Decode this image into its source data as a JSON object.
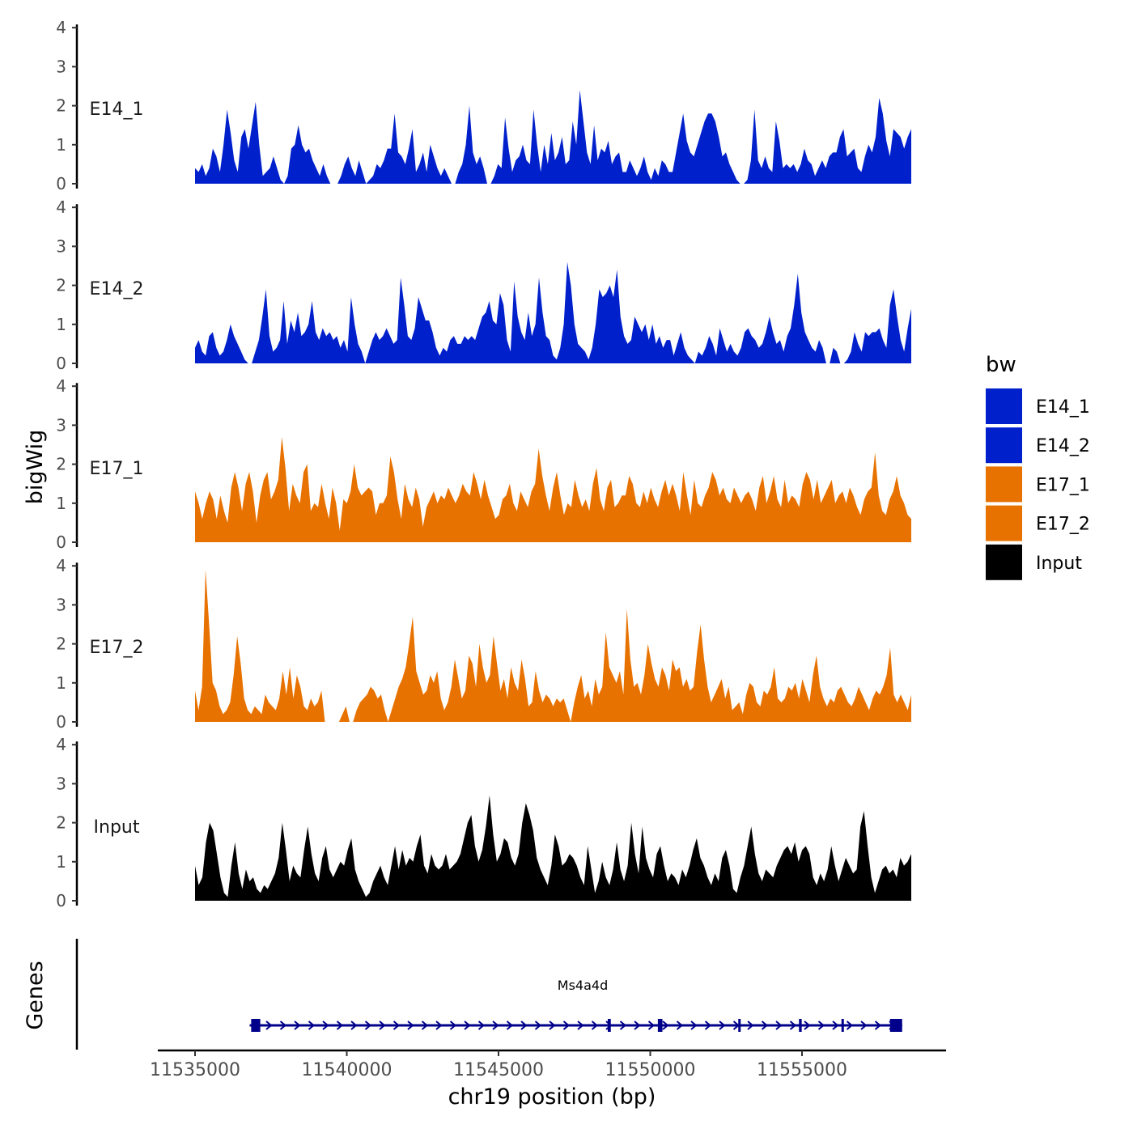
{
  "chart_data": {
    "type": "area",
    "y_axis_title": "bigWig",
    "x_axis_title": "chr19 position (bp)",
    "genes_label": "Genes",
    "y_ticks": [
      0,
      1,
      2,
      3,
      4
    ],
    "ylim": [
      0,
      4
    ],
    "x_ticks": [
      11535000,
      11540000,
      11545000,
      11550000,
      11555000
    ],
    "xlim": [
      11534000,
      11559500
    ],
    "legend": {
      "title": "bw",
      "position": "right",
      "entries": [
        {
          "label": "E14_1",
          "color": "#0020CC"
        },
        {
          "label": "E14_2",
          "color": "#0020CC"
        },
        {
          "label": "E17_1",
          "color": "#E87200"
        },
        {
          "label": "E17_2",
          "color": "#E87200"
        },
        {
          "label": "Input",
          "color": "#000000"
        }
      ]
    },
    "series": [
      {
        "name": "E14_1",
        "color": "#0020CC",
        "x_start": 11535000,
        "x_end": 11558600,
        "values": [
          0.4,
          0.3,
          0.5,
          0.2,
          0.4,
          0.9,
          0.7,
          0.3,
          1.0,
          1.9,
          1.3,
          0.6,
          0.3,
          1.2,
          1.4,
          0.9,
          1.5,
          2.1,
          1.0,
          0.2,
          0.3,
          0.4,
          0.7,
          0.4,
          0.1,
          0.0,
          0.2,
          0.9,
          1.0,
          1.5,
          1.0,
          0.8,
          0.9,
          0.6,
          0.4,
          0.2,
          0.5,
          0.2,
          0.0,
          0.0,
          0.0,
          0.2,
          0.5,
          0.7,
          0.4,
          0.2,
          0.6,
          0.3,
          0.0,
          0.1,
          0.2,
          0.5,
          0.4,
          0.6,
          0.9,
          0.9,
          1.8,
          0.8,
          0.7,
          0.5,
          0.9,
          1.4,
          0.3,
          0.5,
          0.8,
          0.3,
          1.0,
          0.7,
          0.4,
          0.2,
          0.4,
          0.2,
          0.0,
          0.0,
          0.3,
          0.5,
          1.0,
          2.0,
          0.8,
          0.5,
          0.7,
          0.4,
          0.0,
          0.0,
          0.2,
          0.5,
          0.4,
          1.7,
          0.9,
          0.3,
          0.6,
          0.7,
          1.0,
          0.6,
          0.5,
          1.9,
          1.0,
          0.3,
          1.0,
          0.5,
          1.3,
          0.6,
          0.8,
          1.2,
          0.5,
          0.6,
          1.6,
          1.0,
          2.4,
          1.6,
          0.8,
          0.5,
          1.5,
          0.6,
          0.9,
          0.8,
          1.1,
          0.5,
          0.7,
          0.8,
          0.3,
          0.3,
          0.6,
          0.4,
          0.2,
          0.4,
          0.7,
          0.3,
          0.1,
          0.4,
          0.2,
          0.6,
          0.5,
          0.3,
          0.3,
          0.8,
          1.3,
          1.8,
          1.1,
          0.8,
          0.7,
          1.0,
          1.3,
          1.6,
          1.8,
          1.8,
          1.6,
          1.2,
          0.7,
          0.8,
          0.5,
          0.3,
          0.1,
          0.0,
          0.0,
          0.1,
          0.6,
          1.9,
          0.6,
          0.4,
          0.7,
          0.4,
          0.3,
          1.6,
          1.1,
          0.4,
          0.5,
          0.4,
          0.5,
          0.3,
          0.5,
          0.9,
          0.6,
          0.5,
          0.2,
          0.4,
          0.6,
          0.4,
          0.7,
          0.8,
          0.8,
          1.2,
          1.4,
          0.7,
          0.8,
          0.9,
          0.4,
          0.3,
          0.7,
          1.0,
          0.8,
          1.2,
          2.2,
          1.8,
          1.1,
          0.7,
          1.4,
          1.3,
          1.2,
          0.9,
          1.2,
          1.4
        ]
      },
      {
        "name": "E14_2",
        "color": "#0020CC",
        "x_start": 11535000,
        "x_end": 11558600,
        "values": [
          0.4,
          0.6,
          0.3,
          0.2,
          0.7,
          0.8,
          0.4,
          0.2,
          0.3,
          0.6,
          1.0,
          0.7,
          0.5,
          0.3,
          0.1,
          0.0,
          0.0,
          0.3,
          0.6,
          1.2,
          1.9,
          0.7,
          0.3,
          0.4,
          0.6,
          1.6,
          0.5,
          1.1,
          0.8,
          1.3,
          0.7,
          0.8,
          1.0,
          1.6,
          0.8,
          0.6,
          0.9,
          0.7,
          0.8,
          0.6,
          0.7,
          0.4,
          0.6,
          0.3,
          1.7,
          1.0,
          0.5,
          0.3,
          0.0,
          0.3,
          0.6,
          0.8,
          0.6,
          0.7,
          0.9,
          0.7,
          0.5,
          0.6,
          2.2,
          1.5,
          0.7,
          0.6,
          0.9,
          1.7,
          1.4,
          1.1,
          1.1,
          0.8,
          0.4,
          0.2,
          0.4,
          0.3,
          0.6,
          0.7,
          0.5,
          0.5,
          0.7,
          0.6,
          0.7,
          0.6,
          0.9,
          1.2,
          1.3,
          1.6,
          1.1,
          1.0,
          1.8,
          1.5,
          0.6,
          0.3,
          2.1,
          1.2,
          0.8,
          0.6,
          1.3,
          0.7,
          1.0,
          2.2,
          1.3,
          0.7,
          0.6,
          0.2,
          0.1,
          0.4,
          1.0,
          2.6,
          2.0,
          1.0,
          0.5,
          0.4,
          0.3,
          0.1,
          0.4,
          1.0,
          1.9,
          1.7,
          1.8,
          2.0,
          1.7,
          2.4,
          1.2,
          0.7,
          0.5,
          0.6,
          1.2,
          1.0,
          0.8,
          1.0,
          0.6,
          1.0,
          0.5,
          0.7,
          0.4,
          0.6,
          0.6,
          0.2,
          0.5,
          0.8,
          0.4,
          0.2,
          0.1,
          0.0,
          0.3,
          0.2,
          0.4,
          0.7,
          0.5,
          0.2,
          0.9,
          0.6,
          0.3,
          0.5,
          0.3,
          0.2,
          0.4,
          0.8,
          0.9,
          0.7,
          0.6,
          0.4,
          0.5,
          0.8,
          1.2,
          0.8,
          0.5,
          0.6,
          0.3,
          0.7,
          0.9,
          1.5,
          2.3,
          1.3,
          0.8,
          0.6,
          0.4,
          0.3,
          0.6,
          0.4,
          0.0,
          0.0,
          0.4,
          0.3,
          0.0,
          0.0,
          0.1,
          0.3,
          0.8,
          0.5,
          0.3,
          0.8,
          0.7,
          0.8,
          0.8,
          0.9,
          0.6,
          0.4,
          1.5,
          1.9,
          1.2,
          0.6,
          0.3,
          0.9,
          1.4
        ]
      },
      {
        "name": "E17_1",
        "color": "#E87200",
        "x_start": 11535000,
        "x_end": 11558600,
        "values": [
          1.3,
          1.0,
          0.6,
          1.0,
          1.3,
          1.1,
          0.6,
          1.2,
          0.8,
          0.5,
          1.4,
          1.8,
          1.4,
          0.8,
          1.5,
          1.8,
          1.3,
          0.5,
          1.2,
          1.6,
          1.8,
          1.1,
          1.3,
          1.6,
          2.7,
          1.9,
          0.8,
          1.5,
          1.2,
          1.0,
          1.8,
          2.0,
          0.8,
          1.0,
          0.9,
          1.5,
          1.0,
          0.6,
          1.4,
          1.0,
          0.3,
          1.1,
          1.0,
          1.3,
          2.0,
          1.4,
          1.2,
          1.3,
          1.4,
          1.3,
          0.7,
          1.0,
          1.0,
          1.2,
          2.2,
          1.8,
          1.1,
          0.6,
          1.5,
          1.1,
          0.9,
          1.4,
          1.1,
          0.4,
          0.9,
          1.1,
          1.3,
          1.0,
          1.2,
          1.1,
          1.4,
          1.2,
          1.0,
          1.2,
          1.5,
          1.3,
          1.2,
          1.8,
          1.5,
          1.1,
          1.6,
          1.2,
          0.9,
          0.6,
          0.7,
          1.1,
          1.2,
          1.5,
          1.0,
          0.8,
          1.3,
          1.1,
          0.9,
          1.3,
          1.5,
          2.4,
          1.7,
          1.2,
          0.8,
          1.4,
          1.8,
          1.2,
          0.7,
          1.0,
          0.9,
          1.6,
          1.2,
          0.9,
          1.1,
          0.8,
          1.5,
          1.9,
          1.1,
          0.8,
          1.4,
          1.6,
          0.9,
          1.0,
          1.2,
          1.2,
          1.7,
          1.5,
          1.0,
          0.9,
          1.3,
          1.0,
          1.4,
          1.1,
          0.9,
          1.3,
          1.6,
          1.2,
          1.5,
          1.2,
          0.8,
          1.8,
          1.2,
          0.7,
          1.6,
          1.0,
          0.9,
          1.2,
          1.4,
          1.8,
          1.6,
          1.2,
          1.4,
          1.1,
          1.0,
          1.4,
          1.2,
          1.0,
          1.2,
          1.3,
          1.1,
          0.8,
          1.4,
          1.7,
          1.0,
          1.3,
          1.7,
          1.1,
          0.9,
          1.6,
          1.0,
          1.2,
          1.1,
          0.9,
          1.5,
          1.8,
          1.6,
          1.1,
          1.6,
          1.0,
          1.2,
          1.4,
          1.6,
          1.0,
          1.2,
          1.3,
          1.0,
          1.4,
          1.2,
          0.9,
          0.7,
          1.1,
          1.3,
          1.4,
          2.3,
          1.2,
          0.8,
          0.7,
          1.1,
          1.3,
          1.7,
          1.2,
          1.0,
          0.7,
          0.6
        ]
      },
      {
        "name": "E17_2",
        "color": "#E87200",
        "x_start": 11535000,
        "x_end": 11558600,
        "values": [
          0.8,
          0.3,
          0.9,
          3.9,
          2.5,
          1.0,
          0.8,
          0.4,
          0.2,
          0.3,
          0.5,
          1.2,
          2.2,
          1.5,
          0.6,
          0.3,
          0.2,
          0.4,
          0.3,
          0.2,
          0.7,
          0.5,
          0.4,
          0.3,
          0.6,
          1.3,
          0.7,
          1.4,
          0.6,
          1.2,
          0.9,
          0.4,
          0.3,
          0.6,
          0.4,
          0.5,
          0.8,
          0.0,
          0.0,
          0.0,
          0.0,
          0.0,
          0.2,
          0.4,
          0.0,
          0.0,
          0.3,
          0.5,
          0.6,
          0.7,
          0.9,
          0.8,
          0.6,
          0.7,
          0.3,
          0.0,
          0.3,
          0.6,
          0.9,
          1.1,
          1.4,
          2.0,
          2.7,
          1.3,
          1.0,
          0.7,
          0.8,
          1.2,
          1.0,
          1.3,
          0.6,
          0.3,
          0.5,
          0.9,
          1.6,
          1.1,
          0.6,
          0.8,
          1.7,
          1.5,
          0.9,
          2.0,
          1.4,
          1.0,
          1.2,
          2.2,
          1.5,
          0.8,
          1.1,
          0.6,
          1.4,
          1.0,
          0.8,
          1.6,
          1.1,
          0.4,
          0.5,
          1.3,
          0.8,
          0.5,
          0.7,
          0.6,
          0.4,
          0.6,
          0.5,
          0.6,
          0.3,
          0.0,
          0.5,
          0.9,
          1.2,
          0.6,
          0.8,
          0.4,
          1.1,
          0.7,
          0.9,
          2.3,
          1.4,
          1.2,
          1.0,
          1.3,
          0.7,
          2.9,
          1.6,
          0.9,
          1.0,
          0.7,
          1.2,
          2.0,
          1.5,
          1.1,
          0.9,
          1.4,
          1.2,
          0.8,
          1.6,
          1.3,
          1.4,
          0.9,
          1.1,
          0.8,
          0.9,
          1.8,
          2.5,
          1.6,
          0.9,
          0.5,
          0.7,
          0.9,
          1.1,
          0.6,
          0.9,
          0.3,
          0.4,
          0.5,
          0.2,
          0.7,
          1.0,
          0.9,
          0.5,
          0.4,
          0.8,
          0.7,
          0.9,
          1.4,
          0.6,
          0.5,
          0.6,
          0.9,
          0.8,
          1.0,
          0.6,
          1.1,
          0.8,
          0.5,
          1.2,
          1.7,
          0.9,
          0.6,
          0.4,
          0.6,
          0.5,
          0.8,
          0.9,
          0.7,
          0.5,
          0.4,
          0.6,
          0.9,
          0.7,
          0.5,
          0.3,
          0.6,
          0.8,
          0.7,
          0.9,
          1.2,
          1.9,
          0.7,
          0.5,
          0.7,
          0.5,
          0.3,
          0.7
        ]
      },
      {
        "name": "Input",
        "color": "#000000",
        "x_start": 11535000,
        "x_end": 11558600,
        "values": [
          0.9,
          0.4,
          0.6,
          1.5,
          2.0,
          1.8,
          1.2,
          0.6,
          0.2,
          0.1,
          0.9,
          1.5,
          0.7,
          0.3,
          0.8,
          0.5,
          0.6,
          0.3,
          0.2,
          0.4,
          0.3,
          0.5,
          0.7,
          1.1,
          2.0,
          1.3,
          0.5,
          0.9,
          0.7,
          0.6,
          1.3,
          1.9,
          1.2,
          0.7,
          0.5,
          1.1,
          1.4,
          0.8,
          0.6,
          0.8,
          1.0,
          0.9,
          1.3,
          1.6,
          0.8,
          0.5,
          0.3,
          0.1,
          0.2,
          0.5,
          0.7,
          0.9,
          0.6,
          0.4,
          0.9,
          1.4,
          0.8,
          1.3,
          0.9,
          1.1,
          1.0,
          1.4,
          1.7,
          0.9,
          0.7,
          1.2,
          0.9,
          0.8,
          0.9,
          1.2,
          0.8,
          0.9,
          1.0,
          1.2,
          1.6,
          2.0,
          2.2,
          1.4,
          1.0,
          1.3,
          1.9,
          2.7,
          1.7,
          1.0,
          1.2,
          1.6,
          1.5,
          1.1,
          0.9,
          1.2,
          2.0,
          2.5,
          2.2,
          1.8,
          1.1,
          0.8,
          0.6,
          0.4,
          0.9,
          1.7,
          1.4,
          0.9,
          1.0,
          1.2,
          1.1,
          0.9,
          0.6,
          0.4,
          1.4,
          0.8,
          0.2,
          0.5,
          1.0,
          0.6,
          0.4,
          0.8,
          1.5,
          0.8,
          0.5,
          0.9,
          2.0,
          1.2,
          0.7,
          1.9,
          1.1,
          0.8,
          0.6,
          1.2,
          1.4,
          0.9,
          0.5,
          0.7,
          0.6,
          0.4,
          0.8,
          0.6,
          0.9,
          1.3,
          1.6,
          1.1,
          0.9,
          0.6,
          0.4,
          0.7,
          0.5,
          1.1,
          1.3,
          0.9,
          0.3,
          0.2,
          0.6,
          0.9,
          1.4,
          1.9,
          1.2,
          0.7,
          0.5,
          0.8,
          0.7,
          0.6,
          0.9,
          1.1,
          1.3,
          1.4,
          1.2,
          1.5,
          1.0,
          1.3,
          1.4,
          1.2,
          0.6,
          0.4,
          0.7,
          0.5,
          0.8,
          1.4,
          0.9,
          0.5,
          0.8,
          1.1,
          0.9,
          0.7,
          0.8,
          1.9,
          2.3,
          1.4,
          0.6,
          0.2,
          0.5,
          0.8,
          0.9,
          0.7,
          0.8,
          0.6,
          1.1,
          0.9,
          1.0,
          1.2
        ]
      }
    ],
    "gene": {
      "name": "Ms4a4d",
      "start": 11536800,
      "end": 11558300,
      "strand": "+",
      "color": "#00008B",
      "exons": [
        [
          11536850,
          11537150
        ],
        [
          11548600,
          11548700
        ],
        [
          11550250,
          11550400
        ],
        [
          11552900,
          11552980
        ],
        [
          11554900,
          11554990
        ],
        [
          11556300,
          11556380
        ],
        [
          11557900,
          11558300
        ]
      ]
    }
  }
}
